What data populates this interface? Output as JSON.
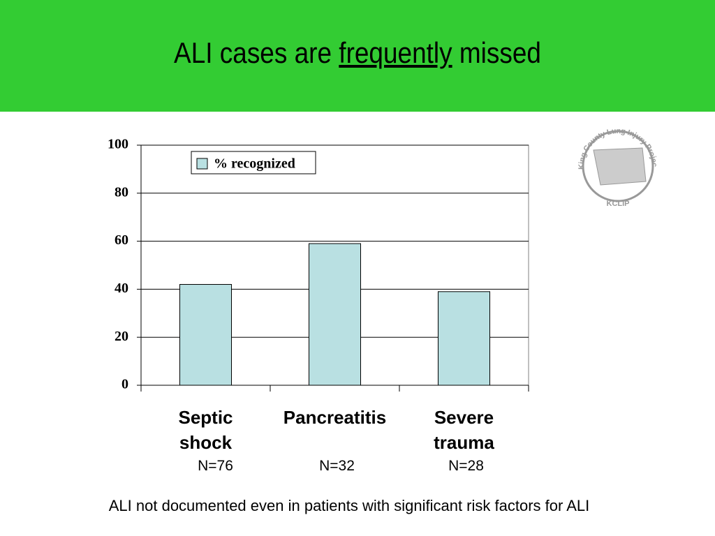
{
  "slide": {
    "title_start": "ALI cases are ",
    "title_emphasis": "frequently",
    "title_end": " missed",
    "footnote": "ALI not documented even in patients with significant risk factors for ALI"
  },
  "logo": {
    "ring_text": "King County Lung Injury Project",
    "abbrev": "KCLIP"
  },
  "chart_data": {
    "type": "bar",
    "categories": [
      "Septic shock",
      "Pancreatitis",
      "Severe trauma"
    ],
    "n_labels": [
      "N=76",
      "N=32",
      "N=28"
    ],
    "series": [
      {
        "name": "% recognized",
        "color": "#b9e0e2",
        "values": [
          42,
          59,
          39
        ]
      }
    ],
    "ylim": [
      0,
      100
    ],
    "yticks": [
      0,
      20,
      40,
      60,
      80,
      100
    ],
    "grid": true,
    "legend": "top-left"
  }
}
